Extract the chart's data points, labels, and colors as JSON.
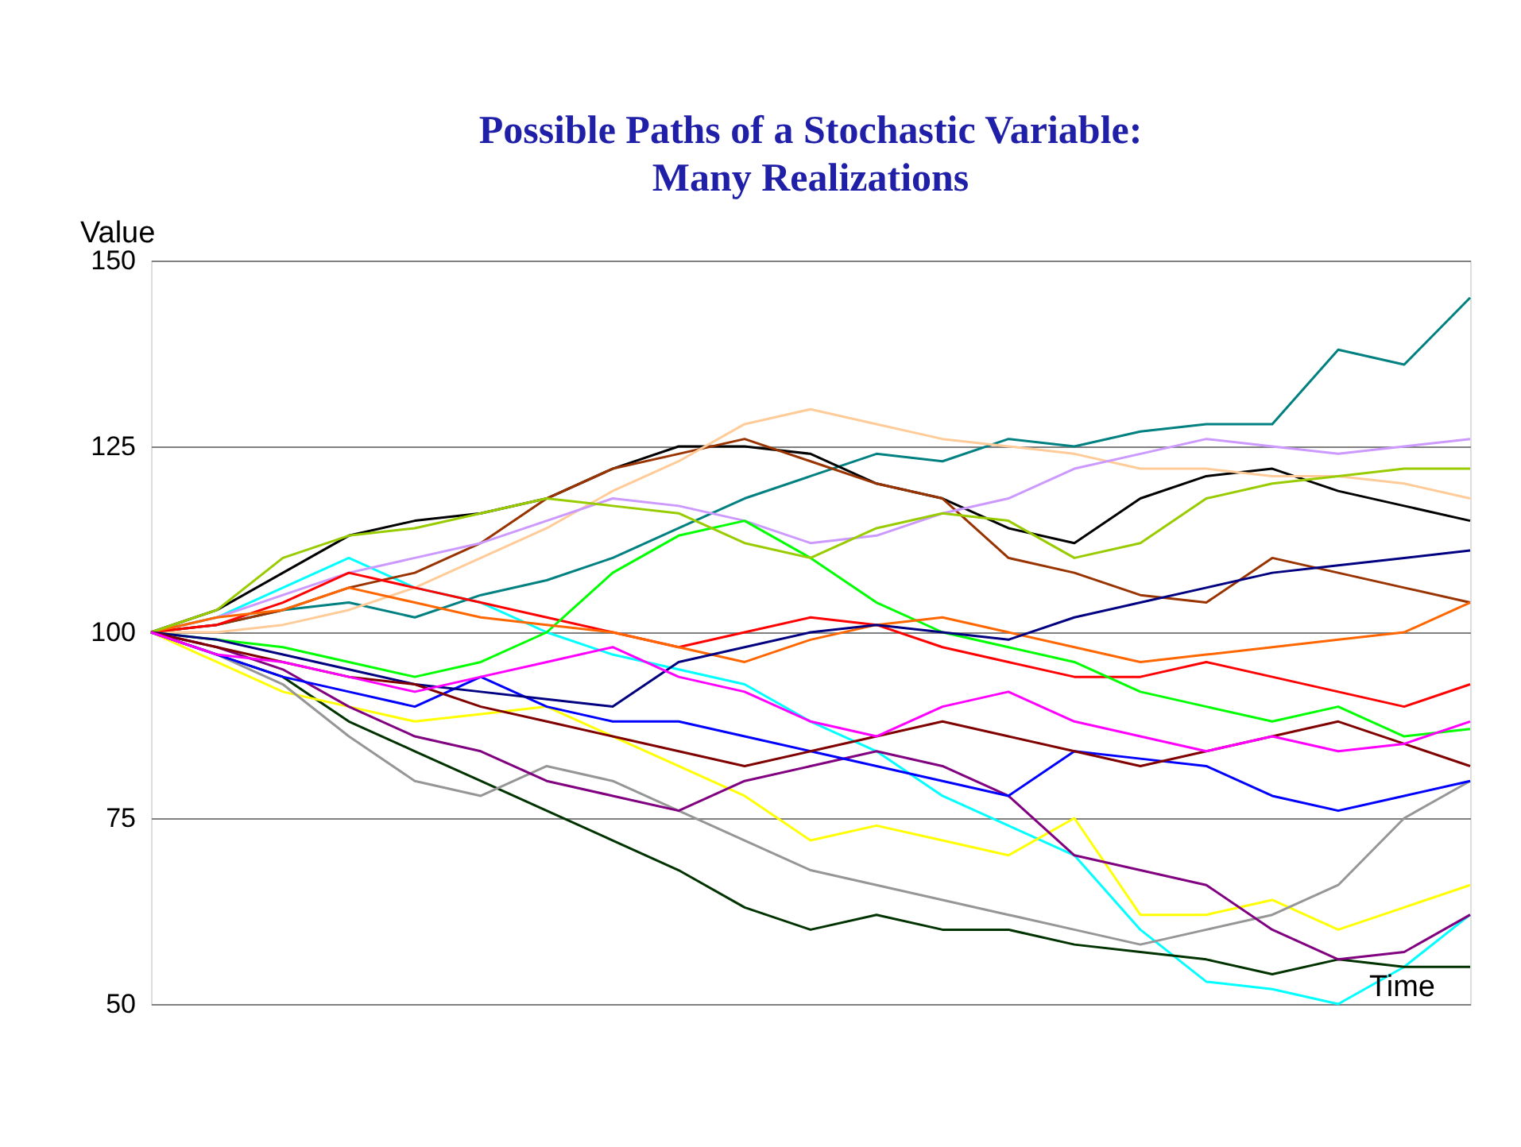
{
  "chart_data": {
    "type": "line",
    "title": "Possible Paths of a Stochastic Variable:\nMany Realizations",
    "ylabel": "Value",
    "xlabel": "Time",
    "categories": [
      null,
      null,
      null,
      null,
      null,
      null,
      null,
      null,
      null,
      null,
      null,
      null,
      null,
      null,
      null,
      null,
      null,
      null,
      null,
      null,
      null
    ],
    "series": [
      {
        "color": "#008080",
        "values": [
          100,
          101,
          103,
          104,
          102,
          105,
          107,
          110,
          114,
          118,
          121,
          124,
          123,
          126,
          125,
          127,
          128,
          128,
          138,
          136,
          145
        ]
      },
      {
        "color": "#00ffff",
        "values": [
          100,
          102,
          106,
          110,
          106,
          104,
          100,
          97,
          95,
          93,
          88,
          84,
          78,
          74,
          70,
          60,
          53,
          52,
          50,
          55,
          62
        ]
      },
      {
        "color": "#003300",
        "values": [
          100,
          97,
          94,
          88,
          84,
          80,
          76,
          72,
          68,
          63,
          60,
          62,
          60,
          60,
          58,
          57,
          56,
          54,
          56,
          55,
          55
        ]
      },
      {
        "color": "#ffff00",
        "values": [
          100,
          96,
          92,
          90,
          88,
          89,
          90,
          86,
          82,
          78,
          72,
          74,
          72,
          70,
          75,
          62,
          62,
          64,
          60,
          63,
          66
        ]
      },
      {
        "color": "#000000",
        "values": [
          100,
          103,
          108,
          113,
          115,
          116,
          118,
          122,
          125,
          125,
          124,
          120,
          118,
          114,
          112,
          118,
          121,
          122,
          119,
          117,
          115
        ]
      },
      {
        "color": "#993300",
        "values": [
          100,
          101,
          103,
          106,
          108,
          112,
          118,
          122,
          124,
          126,
          123,
          120,
          118,
          110,
          108,
          105,
          104,
          110,
          108,
          106,
          104
        ]
      },
      {
        "color": "#ffcc99",
        "values": [
          100,
          100,
          101,
          103,
          106,
          110,
          114,
          119,
          123,
          128,
          130,
          128,
          126,
          125,
          124,
          122,
          122,
          121,
          121,
          120,
          118
        ]
      },
      {
        "color": "#cc99ff",
        "values": [
          100,
          102,
          105,
          108,
          110,
          112,
          115,
          118,
          117,
          115,
          112,
          113,
          116,
          118,
          122,
          124,
          126,
          125,
          124,
          125,
          126
        ]
      },
      {
        "color": "#969696",
        "values": [
          100,
          97,
          93,
          86,
          80,
          78,
          82,
          80,
          76,
          72,
          68,
          66,
          64,
          62,
          60,
          58,
          60,
          62,
          66,
          75,
          80
        ]
      },
      {
        "color": "#800080",
        "values": [
          100,
          98,
          95,
          90,
          86,
          84,
          80,
          78,
          76,
          80,
          82,
          84,
          82,
          78,
          70,
          68,
          66,
          60,
          56,
          57,
          62
        ]
      },
      {
        "color": "#0000ff",
        "values": [
          100,
          97,
          94,
          92,
          90,
          94,
          90,
          88,
          88,
          86,
          84,
          82,
          80,
          78,
          84,
          83,
          82,
          78,
          76,
          78,
          80
        ]
      },
      {
        "color": "#ff0000",
        "values": [
          100,
          101,
          104,
          108,
          106,
          104,
          102,
          100,
          98,
          100,
          102,
          101,
          98,
          96,
          94,
          94,
          96,
          94,
          92,
          90,
          93
        ]
      },
      {
        "color": "#00ff00",
        "values": [
          100,
          99,
          98,
          96,
          94,
          96,
          100,
          108,
          113,
          115,
          110,
          104,
          100,
          98,
          96,
          92,
          90,
          88,
          90,
          86,
          87
        ]
      },
      {
        "color": "#ff6600",
        "values": [
          100,
          102,
          103,
          106,
          104,
          102,
          101,
          100,
          98,
          96,
          99,
          101,
          102,
          100,
          98,
          96,
          97,
          98,
          99,
          100,
          104
        ]
      },
      {
        "color": "#99cc00",
        "values": [
          100,
          103,
          110,
          113,
          114,
          116,
          118,
          117,
          116,
          112,
          110,
          114,
          116,
          115,
          110,
          112,
          118,
          120,
          121,
          122,
          122
        ]
      },
      {
        "color": "#000080",
        "values": [
          100,
          99,
          97,
          95,
          93,
          92,
          91,
          90,
          96,
          98,
          100,
          101,
          100,
          99,
          102,
          104,
          106,
          108,
          109,
          110,
          111
        ]
      },
      {
        "color": "#800000",
        "values": [
          100,
          98,
          96,
          94,
          93,
          90,
          88,
          86,
          84,
          82,
          84,
          86,
          88,
          86,
          84,
          82,
          84,
          86,
          88,
          85,
          82
        ]
      },
      {
        "color": "#ff00ff",
        "values": [
          100,
          97,
          96,
          94,
          92,
          94,
          96,
          98,
          94,
          92,
          88,
          86,
          90,
          92,
          88,
          86,
          84,
          86,
          84,
          85,
          88
        ]
      }
    ],
    "ylim": [
      50,
      150
    ],
    "yticks": [
      50,
      75,
      100,
      125,
      150
    ],
    "grid": "y",
    "tick_labels": "y",
    "legend": false,
    "marker": "none",
    "line_style": "solid"
  }
}
